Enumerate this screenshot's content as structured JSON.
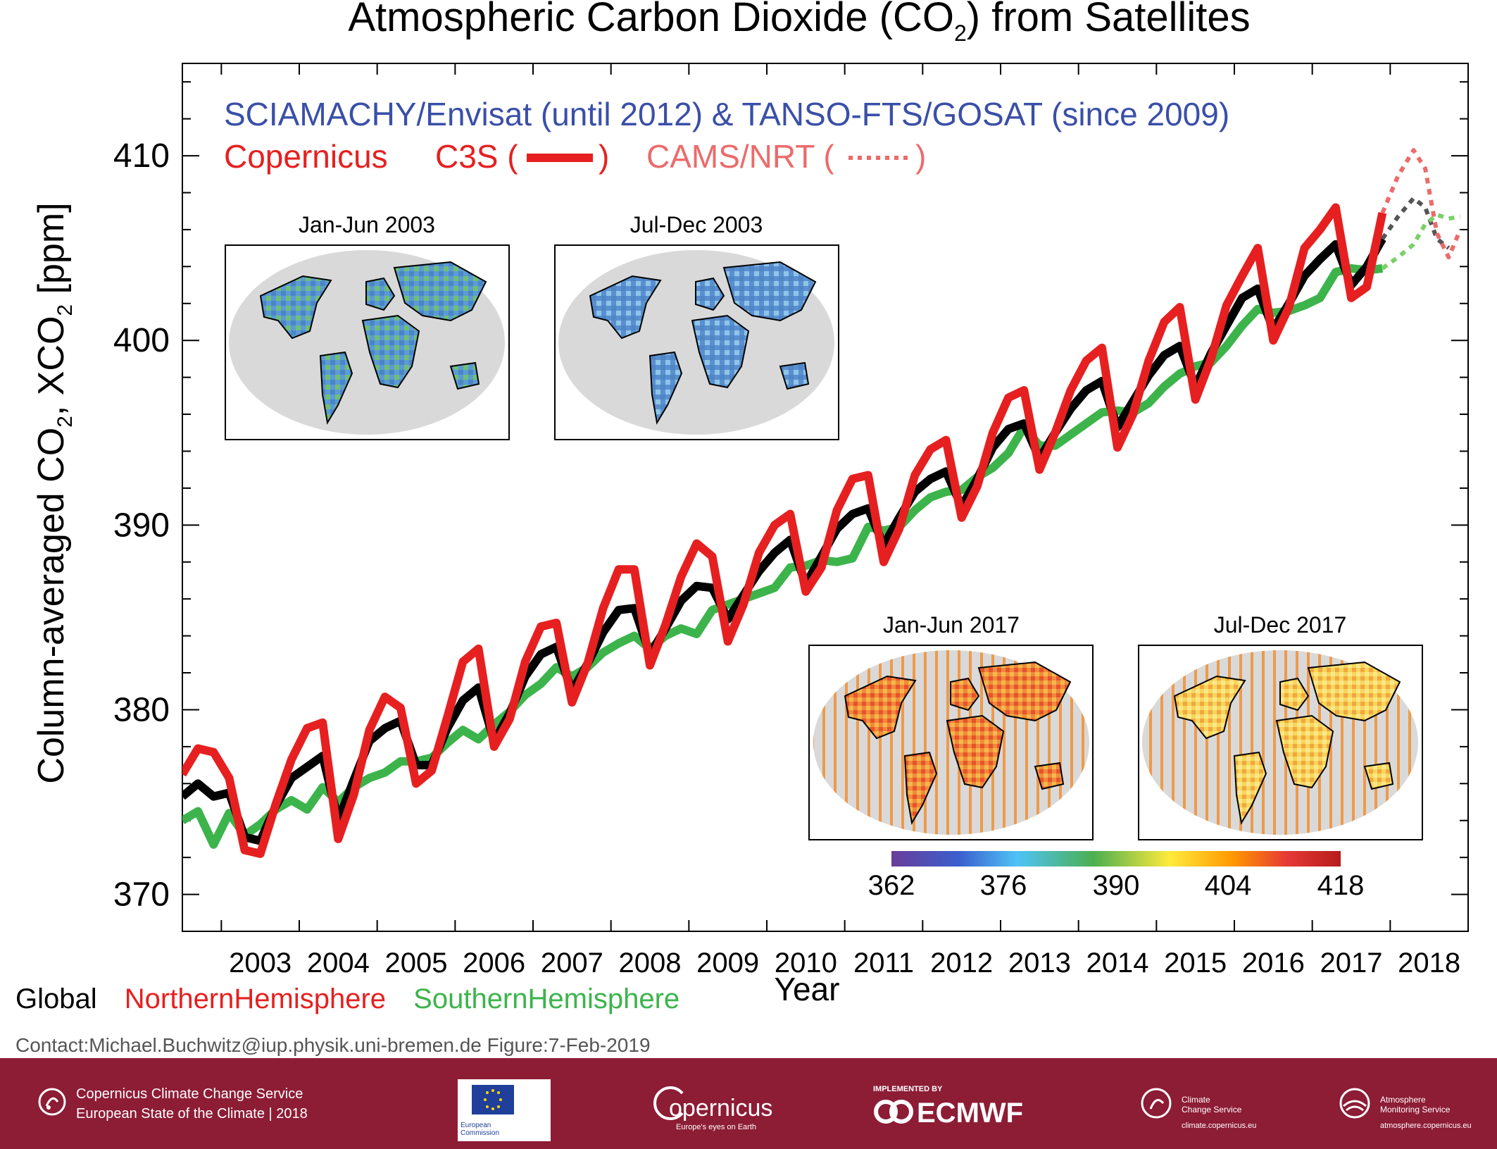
{
  "title_main": "Atmospheric Carbon Dioxide (CO",
  "title_sub": "2",
  "title_end": ") from Satellites",
  "ylabel_a": "Column-averaged CO",
  "ylabel_b": ", XCO",
  "ylabel_c": " [ppm]",
  "ylabel_sub": "2",
  "xlabel": "Year",
  "instruments": "SCIAMACHY/Envisat (until 2012) & TANSO-FTS/GOSAT (since 2009)",
  "legend_copernicus": "Copernicus",
  "legend_c3s": "C3S (",
  "legend_c3s_close": ")",
  "legend_cams": "CAMS/NRT (",
  "legend_cams_close": ")",
  "bottom_legend": {
    "global": "Global",
    "north": "NorthernHemisphere",
    "south": "SouthernHemisphere"
  },
  "contact": "Contact:Michael.Buchwitz@iup.physik.uni-bremen.de Figure:7-Feb-2019",
  "maps": [
    {
      "title": "Jan-Jun 2003",
      "palette": "blue-green"
    },
    {
      "title": "Jul-Dec 2003",
      "palette": "blue"
    },
    {
      "title": "Jan-Jun 2017",
      "palette": "red-orange"
    },
    {
      "title": "Jul-Dec 2017",
      "palette": "yellow-orange"
    }
  ],
  "colorbar": {
    "ticks": [
      "362",
      "376",
      "390",
      "404",
      "418"
    ],
    "colors": [
      "#6a3d9a",
      "#3a5fcd",
      "#4fc3f7",
      "#4caf50",
      "#ffeb3b",
      "#ff9800",
      "#e53935",
      "#b71c1c"
    ]
  },
  "footer": {
    "line1": "Copernicus Climate Change Service",
    "line2": "European State of the Climate | 2018",
    "ec": "European Commission",
    "copernicus": "opernicus",
    "copernicus_sub": "Europe's eyes on Earth",
    "impl": "IMPLEMENTED BY",
    "ecmwf": "ECMWF",
    "c3s_a": "Climate",
    "c3s_b": "Change Service",
    "c3s_url": "climate.copernicus.eu",
    "cams_a": "Atmosphere",
    "cams_b": "Monitoring Service",
    "cams_url": "atmosphere.copernicus.eu"
  },
  "chart_data": {
    "type": "line",
    "xlabel": "Year",
    "ylabel": "Column-averaged CO2, XCO2 [ppm]",
    "xlim": [
      2002.5,
      2019.0
    ],
    "ylim": [
      368,
      415
    ],
    "yticks": [
      370,
      380,
      390,
      400,
      410
    ],
    "xticks": [
      2003,
      2004,
      2005,
      2006,
      2007,
      2008,
      2009,
      2010,
      2011,
      2012,
      2013,
      2014,
      2015,
      2016,
      2017,
      2018
    ],
    "series_colors": {
      "Global": "#000000",
      "NorthernHemisphere": "#e62020",
      "SouthernHemisphere": "#3cb44b"
    },
    "series": [
      {
        "name": "Global",
        "values": [
          [
            2002.5,
            375.3
          ],
          [
            2002.7,
            376.0
          ],
          [
            2002.9,
            375.3
          ],
          [
            2003.1,
            375.5
          ],
          [
            2003.3,
            373.1
          ],
          [
            2003.5,
            372.9
          ],
          [
            2003.7,
            374.8
          ],
          [
            2003.9,
            376.3
          ],
          [
            2004.1,
            376.9
          ],
          [
            2004.3,
            377.5
          ],
          [
            2004.5,
            374.0
          ],
          [
            2004.7,
            376.2
          ],
          [
            2004.9,
            378.3
          ],
          [
            2005.1,
            379.0
          ],
          [
            2005.3,
            379.4
          ],
          [
            2005.5,
            377.0
          ],
          [
            2005.7,
            377.0
          ],
          [
            2005.9,
            379.0
          ],
          [
            2006.1,
            380.5
          ],
          [
            2006.3,
            381.2
          ],
          [
            2006.5,
            378.3
          ],
          [
            2006.7,
            379.8
          ],
          [
            2006.9,
            381.8
          ],
          [
            2007.1,
            383.0
          ],
          [
            2007.3,
            383.4
          ],
          [
            2007.5,
            381.0
          ],
          [
            2007.7,
            382.5
          ],
          [
            2007.9,
            384.2
          ],
          [
            2008.1,
            385.4
          ],
          [
            2008.3,
            385.5
          ],
          [
            2008.5,
            383.0
          ],
          [
            2008.7,
            384.4
          ],
          [
            2008.9,
            385.9
          ],
          [
            2009.1,
            386.7
          ],
          [
            2009.3,
            386.6
          ],
          [
            2009.5,
            384.9
          ],
          [
            2009.7,
            386.2
          ],
          [
            2009.9,
            387.5
          ],
          [
            2010.1,
            388.5
          ],
          [
            2010.3,
            389.2
          ],
          [
            2010.5,
            386.8
          ],
          [
            2010.7,
            388.3
          ],
          [
            2010.9,
            389.8
          ],
          [
            2011.1,
            390.6
          ],
          [
            2011.3,
            390.9
          ],
          [
            2011.5,
            388.9
          ],
          [
            2011.7,
            390.4
          ],
          [
            2011.9,
            391.8
          ],
          [
            2012.1,
            392.5
          ],
          [
            2012.3,
            392.9
          ],
          [
            2012.5,
            391.0
          ],
          [
            2012.7,
            392.5
          ],
          [
            2012.9,
            394.2
          ],
          [
            2013.1,
            395.2
          ],
          [
            2013.3,
            395.5
          ],
          [
            2013.5,
            393.6
          ],
          [
            2013.7,
            395.0
          ],
          [
            2013.9,
            396.3
          ],
          [
            2014.1,
            397.3
          ],
          [
            2014.3,
            397.8
          ],
          [
            2014.5,
            395.3
          ],
          [
            2014.7,
            396.7
          ],
          [
            2014.9,
            398.1
          ],
          [
            2015.1,
            399.2
          ],
          [
            2015.3,
            399.7
          ],
          [
            2015.5,
            397.5
          ],
          [
            2015.7,
            399.3
          ],
          [
            2015.9,
            400.8
          ],
          [
            2016.1,
            402.3
          ],
          [
            2016.3,
            402.8
          ],
          [
            2016.5,
            400.6
          ],
          [
            2016.7,
            402.0
          ],
          [
            2016.9,
            403.5
          ],
          [
            2017.1,
            404.4
          ],
          [
            2017.3,
            405.2
          ],
          [
            2017.5,
            403.0
          ],
          [
            2017.7,
            404.0
          ],
          [
            2017.9,
            405.5
          ]
        ]
      },
      {
        "name": "NorthernHemisphere",
        "values": [
          [
            2002.5,
            376.5
          ],
          [
            2002.7,
            377.9
          ],
          [
            2002.9,
            377.7
          ],
          [
            2003.1,
            376.3
          ],
          [
            2003.3,
            372.4
          ],
          [
            2003.5,
            372.2
          ],
          [
            2003.7,
            374.9
          ],
          [
            2003.9,
            377.3
          ],
          [
            2004.1,
            379.0
          ],
          [
            2004.3,
            379.3
          ],
          [
            2004.5,
            373.0
          ],
          [
            2004.7,
            375.4
          ],
          [
            2004.9,
            378.9
          ],
          [
            2005.1,
            380.7
          ],
          [
            2005.3,
            380.1
          ],
          [
            2005.5,
            376.0
          ],
          [
            2005.7,
            376.7
          ],
          [
            2005.9,
            379.6
          ],
          [
            2006.1,
            382.6
          ],
          [
            2006.3,
            383.3
          ],
          [
            2006.5,
            378.0
          ],
          [
            2006.7,
            379.5
          ],
          [
            2006.9,
            382.6
          ],
          [
            2007.1,
            384.5
          ],
          [
            2007.3,
            384.7
          ],
          [
            2007.5,
            380.4
          ],
          [
            2007.7,
            382.5
          ],
          [
            2007.9,
            385.5
          ],
          [
            2008.1,
            387.6
          ],
          [
            2008.3,
            387.6
          ],
          [
            2008.5,
            382.4
          ],
          [
            2008.7,
            384.6
          ],
          [
            2008.9,
            387.2
          ],
          [
            2009.1,
            389.0
          ],
          [
            2009.3,
            388.3
          ],
          [
            2009.5,
            383.7
          ],
          [
            2009.7,
            385.7
          ],
          [
            2009.9,
            388.5
          ],
          [
            2010.1,
            390.0
          ],
          [
            2010.3,
            390.6
          ],
          [
            2010.5,
            386.4
          ],
          [
            2010.7,
            387.7
          ],
          [
            2010.9,
            390.8
          ],
          [
            2011.1,
            392.5
          ],
          [
            2011.3,
            392.7
          ],
          [
            2011.5,
            388.0
          ],
          [
            2011.7,
            389.8
          ],
          [
            2011.9,
            392.7
          ],
          [
            2012.1,
            394.1
          ],
          [
            2012.3,
            394.6
          ],
          [
            2012.5,
            390.4
          ],
          [
            2012.7,
            392.1
          ],
          [
            2012.9,
            395.0
          ],
          [
            2013.1,
            396.9
          ],
          [
            2013.3,
            397.3
          ],
          [
            2013.5,
            393.0
          ],
          [
            2013.7,
            395.0
          ],
          [
            2013.9,
            397.3
          ],
          [
            2014.1,
            398.9
          ],
          [
            2014.3,
            399.6
          ],
          [
            2014.5,
            394.2
          ],
          [
            2014.7,
            396.0
          ],
          [
            2014.9,
            398.9
          ],
          [
            2015.1,
            401.0
          ],
          [
            2015.3,
            401.8
          ],
          [
            2015.5,
            396.8
          ],
          [
            2015.7,
            399.0
          ],
          [
            2015.9,
            401.9
          ],
          [
            2016.1,
            403.5
          ],
          [
            2016.3,
            405.0
          ],
          [
            2016.5,
            400.0
          ],
          [
            2016.7,
            401.8
          ],
          [
            2016.9,
            405.0
          ],
          [
            2017.1,
            406.0
          ],
          [
            2017.3,
            407.2
          ],
          [
            2017.5,
            402.3
          ],
          [
            2017.7,
            402.9
          ],
          [
            2017.9,
            406.9
          ]
        ]
      },
      {
        "name": "SouthernHemisphere",
        "values": [
          [
            2002.5,
            374.0
          ],
          [
            2002.7,
            374.5
          ],
          [
            2002.9,
            372.7
          ],
          [
            2003.1,
            374.4
          ],
          [
            2003.3,
            373.2
          ],
          [
            2003.5,
            373.8
          ],
          [
            2003.7,
            374.6
          ],
          [
            2003.9,
            375.1
          ],
          [
            2004.1,
            374.6
          ],
          [
            2004.3,
            375.8
          ],
          [
            2004.5,
            375.0
          ],
          [
            2004.7,
            375.8
          ],
          [
            2004.9,
            376.3
          ],
          [
            2005.1,
            376.6
          ],
          [
            2005.3,
            377.2
          ],
          [
            2005.5,
            377.2
          ],
          [
            2005.7,
            377.4
          ],
          [
            2005.9,
            378.2
          ],
          [
            2006.1,
            378.9
          ],
          [
            2006.3,
            378.4
          ],
          [
            2006.5,
            379.2
          ],
          [
            2006.7,
            379.9
          ],
          [
            2006.9,
            380.8
          ],
          [
            2007.1,
            381.4
          ],
          [
            2007.3,
            382.3
          ],
          [
            2007.5,
            381.8
          ],
          [
            2007.7,
            382.3
          ],
          [
            2007.9,
            383.1
          ],
          [
            2008.1,
            383.6
          ],
          [
            2008.3,
            384.0
          ],
          [
            2008.5,
            383.3
          ],
          [
            2008.7,
            384.0
          ],
          [
            2008.9,
            384.4
          ],
          [
            2009.1,
            384.1
          ],
          [
            2009.3,
            385.4
          ],
          [
            2009.5,
            385.7
          ],
          [
            2009.7,
            386.0
          ],
          [
            2009.9,
            386.3
          ],
          [
            2010.1,
            386.6
          ],
          [
            2010.3,
            387.7
          ],
          [
            2010.5,
            387.8
          ],
          [
            2010.7,
            388.1
          ],
          [
            2010.9,
            388.0
          ],
          [
            2011.1,
            388.2
          ],
          [
            2011.3,
            389.9
          ],
          [
            2011.5,
            389.7
          ],
          [
            2011.7,
            389.9
          ],
          [
            2011.9,
            390.8
          ],
          [
            2012.1,
            391.5
          ],
          [
            2012.3,
            391.8
          ],
          [
            2012.5,
            391.9
          ],
          [
            2012.7,
            392.6
          ],
          [
            2012.9,
            393.1
          ],
          [
            2013.1,
            393.9
          ],
          [
            2013.3,
            395.3
          ],
          [
            2013.5,
            394.3
          ],
          [
            2013.7,
            394.3
          ],
          [
            2013.9,
            394.9
          ],
          [
            2014.1,
            395.5
          ],
          [
            2014.3,
            396.1
          ],
          [
            2014.5,
            396.2
          ],
          [
            2014.7,
            396.1
          ],
          [
            2014.9,
            396.6
          ],
          [
            2015.1,
            397.5
          ],
          [
            2015.3,
            398.2
          ],
          [
            2015.5,
            398.6
          ],
          [
            2015.7,
            398.8
          ],
          [
            2015.9,
            399.7
          ],
          [
            2016.1,
            400.8
          ],
          [
            2016.3,
            401.7
          ],
          [
            2016.5,
            401.5
          ],
          [
            2016.7,
            401.6
          ],
          [
            2016.9,
            401.9
          ],
          [
            2017.1,
            402.3
          ],
          [
            2017.3,
            403.7
          ],
          [
            2017.5,
            403.9
          ],
          [
            2017.7,
            403.8
          ],
          [
            2017.9,
            403.9
          ]
        ]
      },
      {
        "name": "Global (CAMS/NRT)",
        "style": "dotted",
        "values": [
          [
            2017.9,
            405.5
          ],
          [
            2018.1,
            406.7
          ],
          [
            2018.3,
            407.7
          ],
          [
            2018.45,
            407.2
          ],
          [
            2018.6,
            405.5
          ],
          [
            2018.75,
            405.0
          ]
        ]
      },
      {
        "name": "NorthernHemisphere (CAMS/NRT)",
        "style": "dotted",
        "values": [
          [
            2017.9,
            406.9
          ],
          [
            2018.1,
            408.9
          ],
          [
            2018.3,
            410.3
          ],
          [
            2018.45,
            409.3
          ],
          [
            2018.6,
            405.8
          ],
          [
            2018.75,
            404.5
          ],
          [
            2018.9,
            406.0
          ]
        ]
      },
      {
        "name": "SouthernHemisphere (CAMS/NRT)",
        "style": "dotted",
        "values": [
          [
            2017.9,
            403.9
          ],
          [
            2018.1,
            404.5
          ],
          [
            2018.3,
            405.2
          ],
          [
            2018.45,
            406.3
          ],
          [
            2018.6,
            406.8
          ],
          [
            2018.75,
            406.6
          ],
          [
            2018.9,
            406.7
          ]
        ]
      }
    ]
  }
}
